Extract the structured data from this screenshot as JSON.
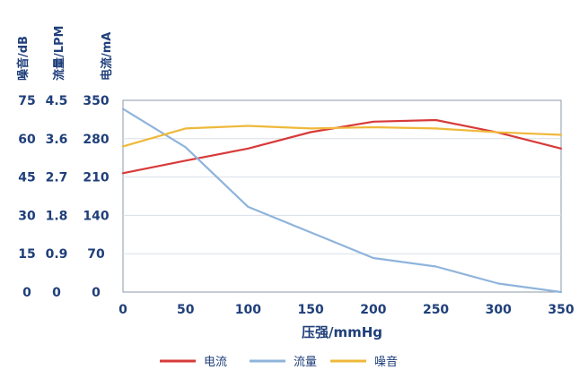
{
  "chart_data": {
    "type": "line",
    "xlabel": "压强/mmHg",
    "x_ticks": [
      0,
      50,
      100,
      150,
      200,
      250,
      300,
      350
    ],
    "xlim": [
      0,
      350
    ],
    "grid": true,
    "legend_position": "bottom",
    "y_axes": [
      {
        "label": "噪音/dB",
        "ticks": [
          0,
          15,
          30,
          45,
          60,
          75
        ],
        "ylim": [
          0,
          75
        ]
      },
      {
        "label": "流量/LPM",
        "ticks": [
          "0",
          "0.9",
          "1.8",
          "2.7",
          "3.6",
          "4.5"
        ],
        "ylim": [
          0,
          4.5
        ]
      },
      {
        "label": "电流/mA",
        "ticks": [
          0,
          70,
          140,
          210,
          280,
          350
        ],
        "ylim": [
          0,
          350
        ]
      }
    ],
    "series": [
      {
        "name": "电流",
        "color": "#d83a3a",
        "axis": "电流/mA",
        "x": [
          0,
          50,
          100,
          150,
          200,
          250,
          300,
          350
        ],
        "y": [
          217,
          240,
          262,
          292,
          311,
          314,
          291,
          262
        ]
      },
      {
        "name": "流量",
        "color": "#8fb4dc",
        "axis": "流量/LPM",
        "x": [
          0,
          50,
          100,
          150,
          200,
          250,
          300,
          350
        ],
        "y": [
          4.3,
          3.4,
          2.0,
          1.4,
          0.8,
          0.6,
          0.2,
          0.0
        ]
      },
      {
        "name": "噪音",
        "color": "#efb83a",
        "axis": "噪音/dB",
        "x": [
          0,
          50,
          100,
          150,
          200,
          250,
          300,
          350
        ],
        "y": [
          57,
          64,
          65,
          64,
          64.5,
          64,
          62.5,
          61.5
        ]
      }
    ]
  }
}
